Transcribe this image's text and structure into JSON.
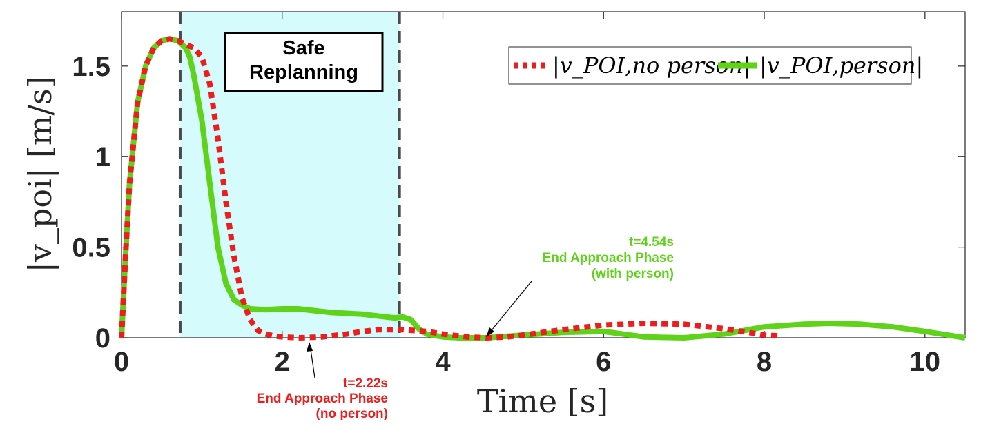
{
  "chart_data": {
    "type": "line",
    "title": "",
    "xlabel": "Time [s]",
    "ylabel": "|v_poi| [m/s]",
    "xlim": [
      0,
      10.5
    ],
    "ylim": [
      0,
      1.8
    ],
    "xticks": [
      "0",
      "2",
      "4",
      "6",
      "8",
      "10"
    ],
    "xtick_values": [
      0,
      2,
      4,
      6,
      8,
      10
    ],
    "yticks": [
      "0",
      "0.5",
      "1",
      "1.5"
    ],
    "ytick_values": [
      0,
      0.5,
      1,
      1.5
    ],
    "grid": false,
    "legend_position": "top-right",
    "series": [
      {
        "name": "|v_POI,no person|",
        "color": "#ee1c1c",
        "style": "dotted",
        "x": [
          0,
          0.05,
          0.1,
          0.2,
          0.3,
          0.4,
          0.5,
          0.6,
          0.7,
          0.8,
          0.9,
          1.0,
          1.1,
          1.2,
          1.3,
          1.4,
          1.5,
          1.6,
          1.7,
          1.8,
          1.9,
          2.0,
          2.22,
          2.5,
          2.8,
          3.0,
          3.2,
          3.5,
          3.8,
          4.0,
          4.3,
          4.54,
          4.8,
          5.0,
          5.5,
          6.0,
          6.5,
          7.0,
          7.5,
          7.8,
          8.0,
          8.2
        ],
        "values": [
          0.0,
          0.45,
          0.85,
          1.3,
          1.5,
          1.6,
          1.64,
          1.65,
          1.64,
          1.62,
          1.6,
          1.55,
          1.4,
          1.1,
          0.75,
          0.45,
          0.22,
          0.1,
          0.04,
          0.02,
          0.01,
          0.005,
          0.0,
          0.005,
          0.02,
          0.035,
          0.045,
          0.045,
          0.035,
          0.02,
          0.005,
          0.0,
          0.005,
          0.015,
          0.045,
          0.07,
          0.08,
          0.075,
          0.05,
          0.03,
          0.015,
          0.01
        ]
      },
      {
        "name": "|v_POI,person|",
        "color": "#5fd319",
        "style": "solid",
        "x": [
          0,
          0.05,
          0.1,
          0.2,
          0.3,
          0.4,
          0.5,
          0.6,
          0.7,
          0.8,
          0.85,
          0.9,
          1.0,
          1.1,
          1.2,
          1.3,
          1.4,
          1.5,
          1.6,
          1.8,
          2.0,
          2.2,
          2.4,
          2.6,
          2.8,
          3.0,
          3.2,
          3.4,
          3.5,
          3.6,
          3.7,
          3.8,
          4.0,
          4.2,
          4.54,
          5.0,
          5.5,
          6.0,
          6.5,
          7.0,
          7.5,
          8.0,
          8.5,
          8.8,
          9.2,
          9.6,
          10.0,
          10.5
        ],
        "values": [
          0.0,
          0.45,
          0.85,
          1.3,
          1.5,
          1.6,
          1.64,
          1.65,
          1.64,
          1.6,
          1.55,
          1.45,
          1.2,
          0.85,
          0.5,
          0.3,
          0.21,
          0.18,
          0.16,
          0.155,
          0.16,
          0.16,
          0.15,
          0.14,
          0.135,
          0.13,
          0.12,
          0.11,
          0.115,
          0.1,
          0.05,
          0.02,
          0.005,
          0.0,
          0.0,
          0.015,
          0.03,
          0.035,
          0.005,
          0.0,
          0.02,
          0.06,
          0.075,
          0.08,
          0.075,
          0.06,
          0.035,
          0.0
        ]
      }
    ],
    "shaded_region": {
      "x": [
        0.73,
        3.46
      ],
      "color": "#d6fbfd",
      "label": [
        "Safe",
        "Replanning"
      ]
    },
    "vertical_lines": [
      0.73,
      3.46
    ],
    "annotations": [
      {
        "lines": [
          "t=2.22s",
          "End Approach Phase",
          "(no person)"
        ],
        "color": "#ee1c1c",
        "target_x": 2.22,
        "target_y": 0.0
      },
      {
        "lines": [
          "t=4.54s",
          "End Approach Phase",
          "(with person)"
        ],
        "color": "#5fd319",
        "target_x": 4.54,
        "target_y": 0.0
      }
    ]
  }
}
